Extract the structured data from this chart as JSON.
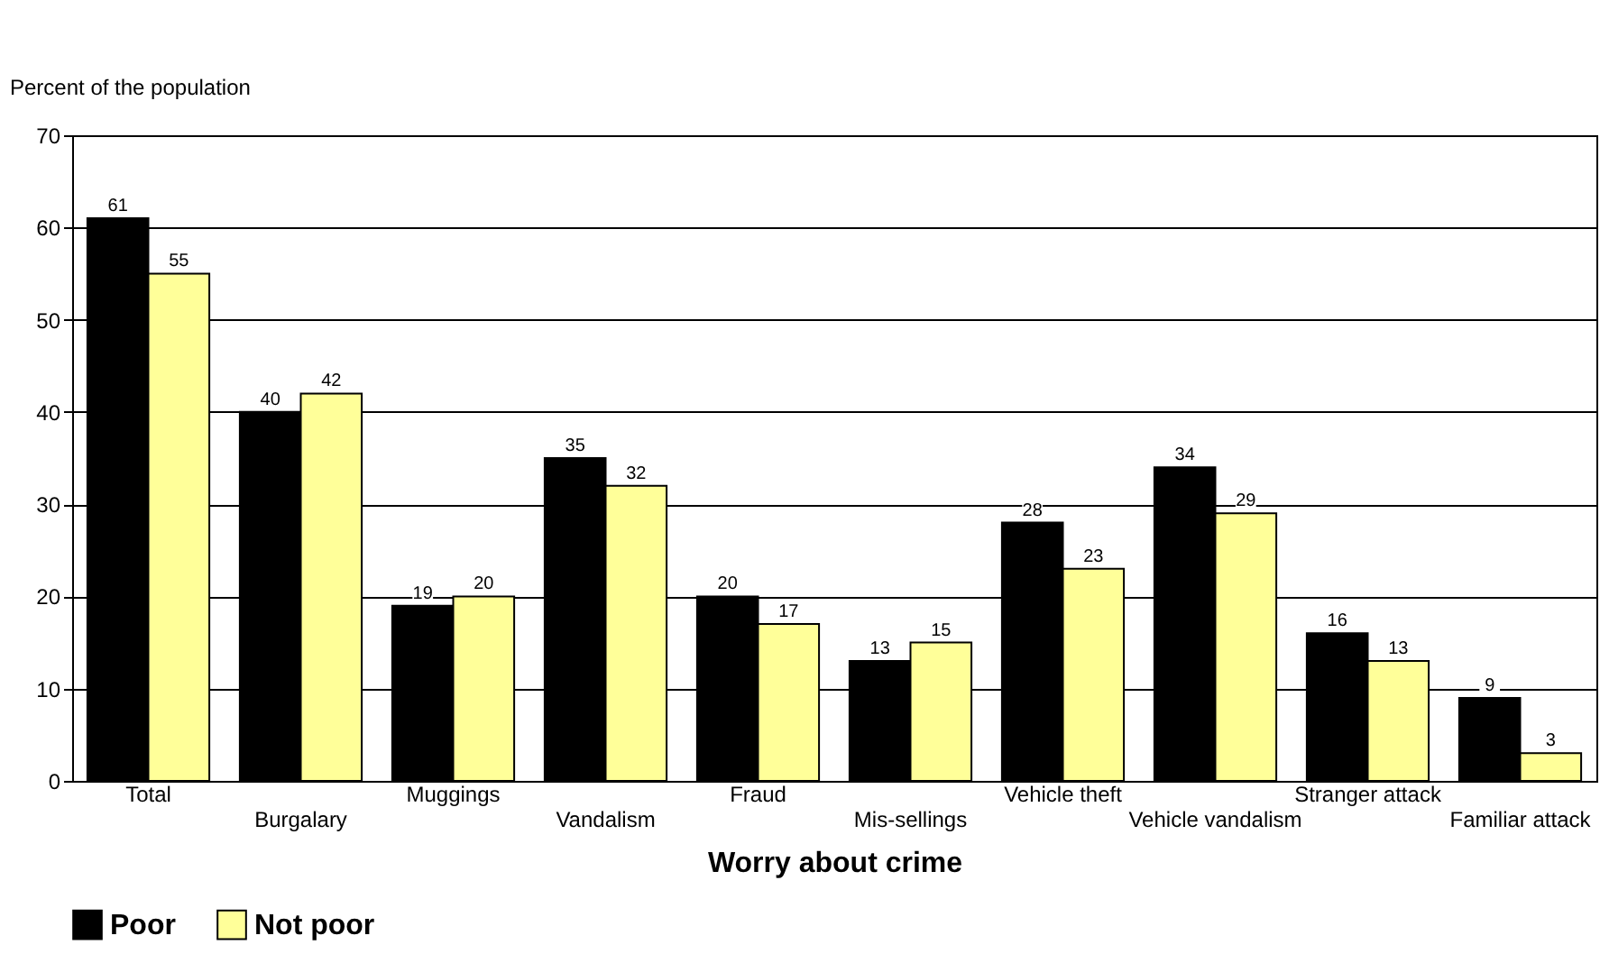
{
  "chart_data": {
    "type": "bar",
    "ylabel": "Percent of the population",
    "xlabel": "Worry about crime",
    "categories": [
      "Total",
      "Burgalary",
      "Muggings",
      "Vandalism",
      "Fraud",
      "Mis-sellings",
      "Vehicle theft",
      "Vehicle vandalism",
      "Stranger attack",
      "Familiar attack"
    ],
    "series": [
      {
        "name": "Poor",
        "color": "#000000",
        "values": [
          61,
          40,
          19,
          35,
          20,
          13,
          28,
          34,
          16,
          9
        ]
      },
      {
        "name": "Not poor",
        "color": "#ffff99",
        "values": [
          55,
          42,
          20,
          32,
          17,
          15,
          23,
          29,
          13,
          3
        ]
      }
    ],
    "ylim": [
      0,
      70
    ],
    "yticks": [
      0,
      10,
      20,
      30,
      40,
      50,
      60,
      70
    ],
    "grid": "y",
    "legend": "bottom",
    "data_labels": true
  }
}
